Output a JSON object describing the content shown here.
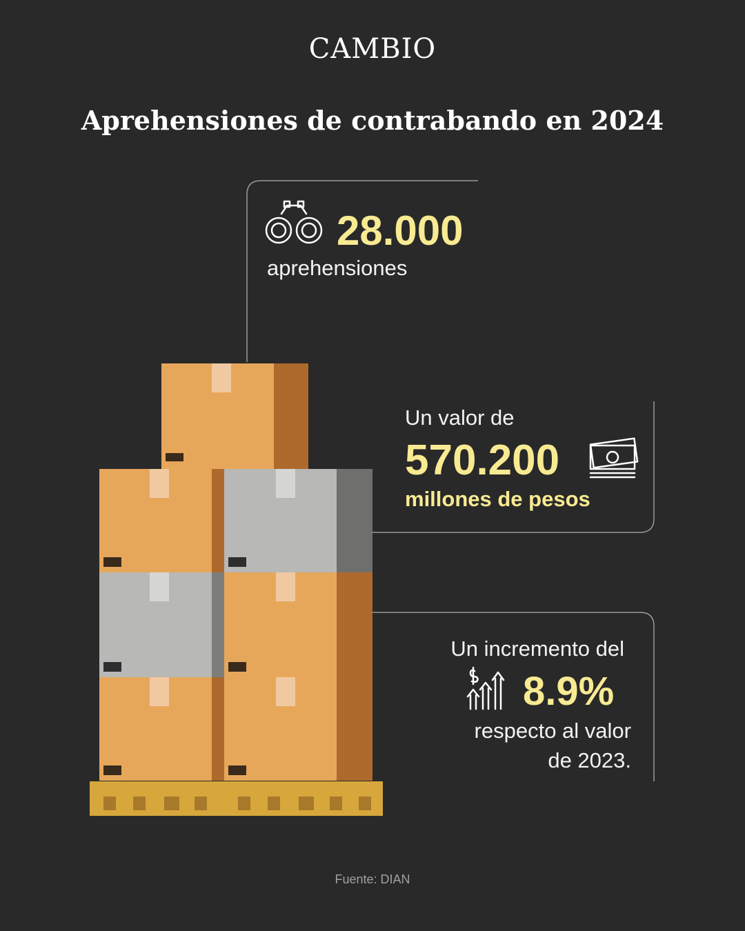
{
  "brand": "CAMBIO",
  "title": "Aprehensiones de contrabando en 2024",
  "stats": [
    {
      "value": "28.000",
      "label": "aprehensiones"
    },
    {
      "prefix": "Un valor de",
      "value": "570.200",
      "suffix": "millones de pesos"
    },
    {
      "prefix": "Un incremento del",
      "value": "8.9%",
      "suffix_lines": [
        "respecto al valor",
        "de 2023."
      ]
    }
  ],
  "source": "Fuente: DIAN"
}
